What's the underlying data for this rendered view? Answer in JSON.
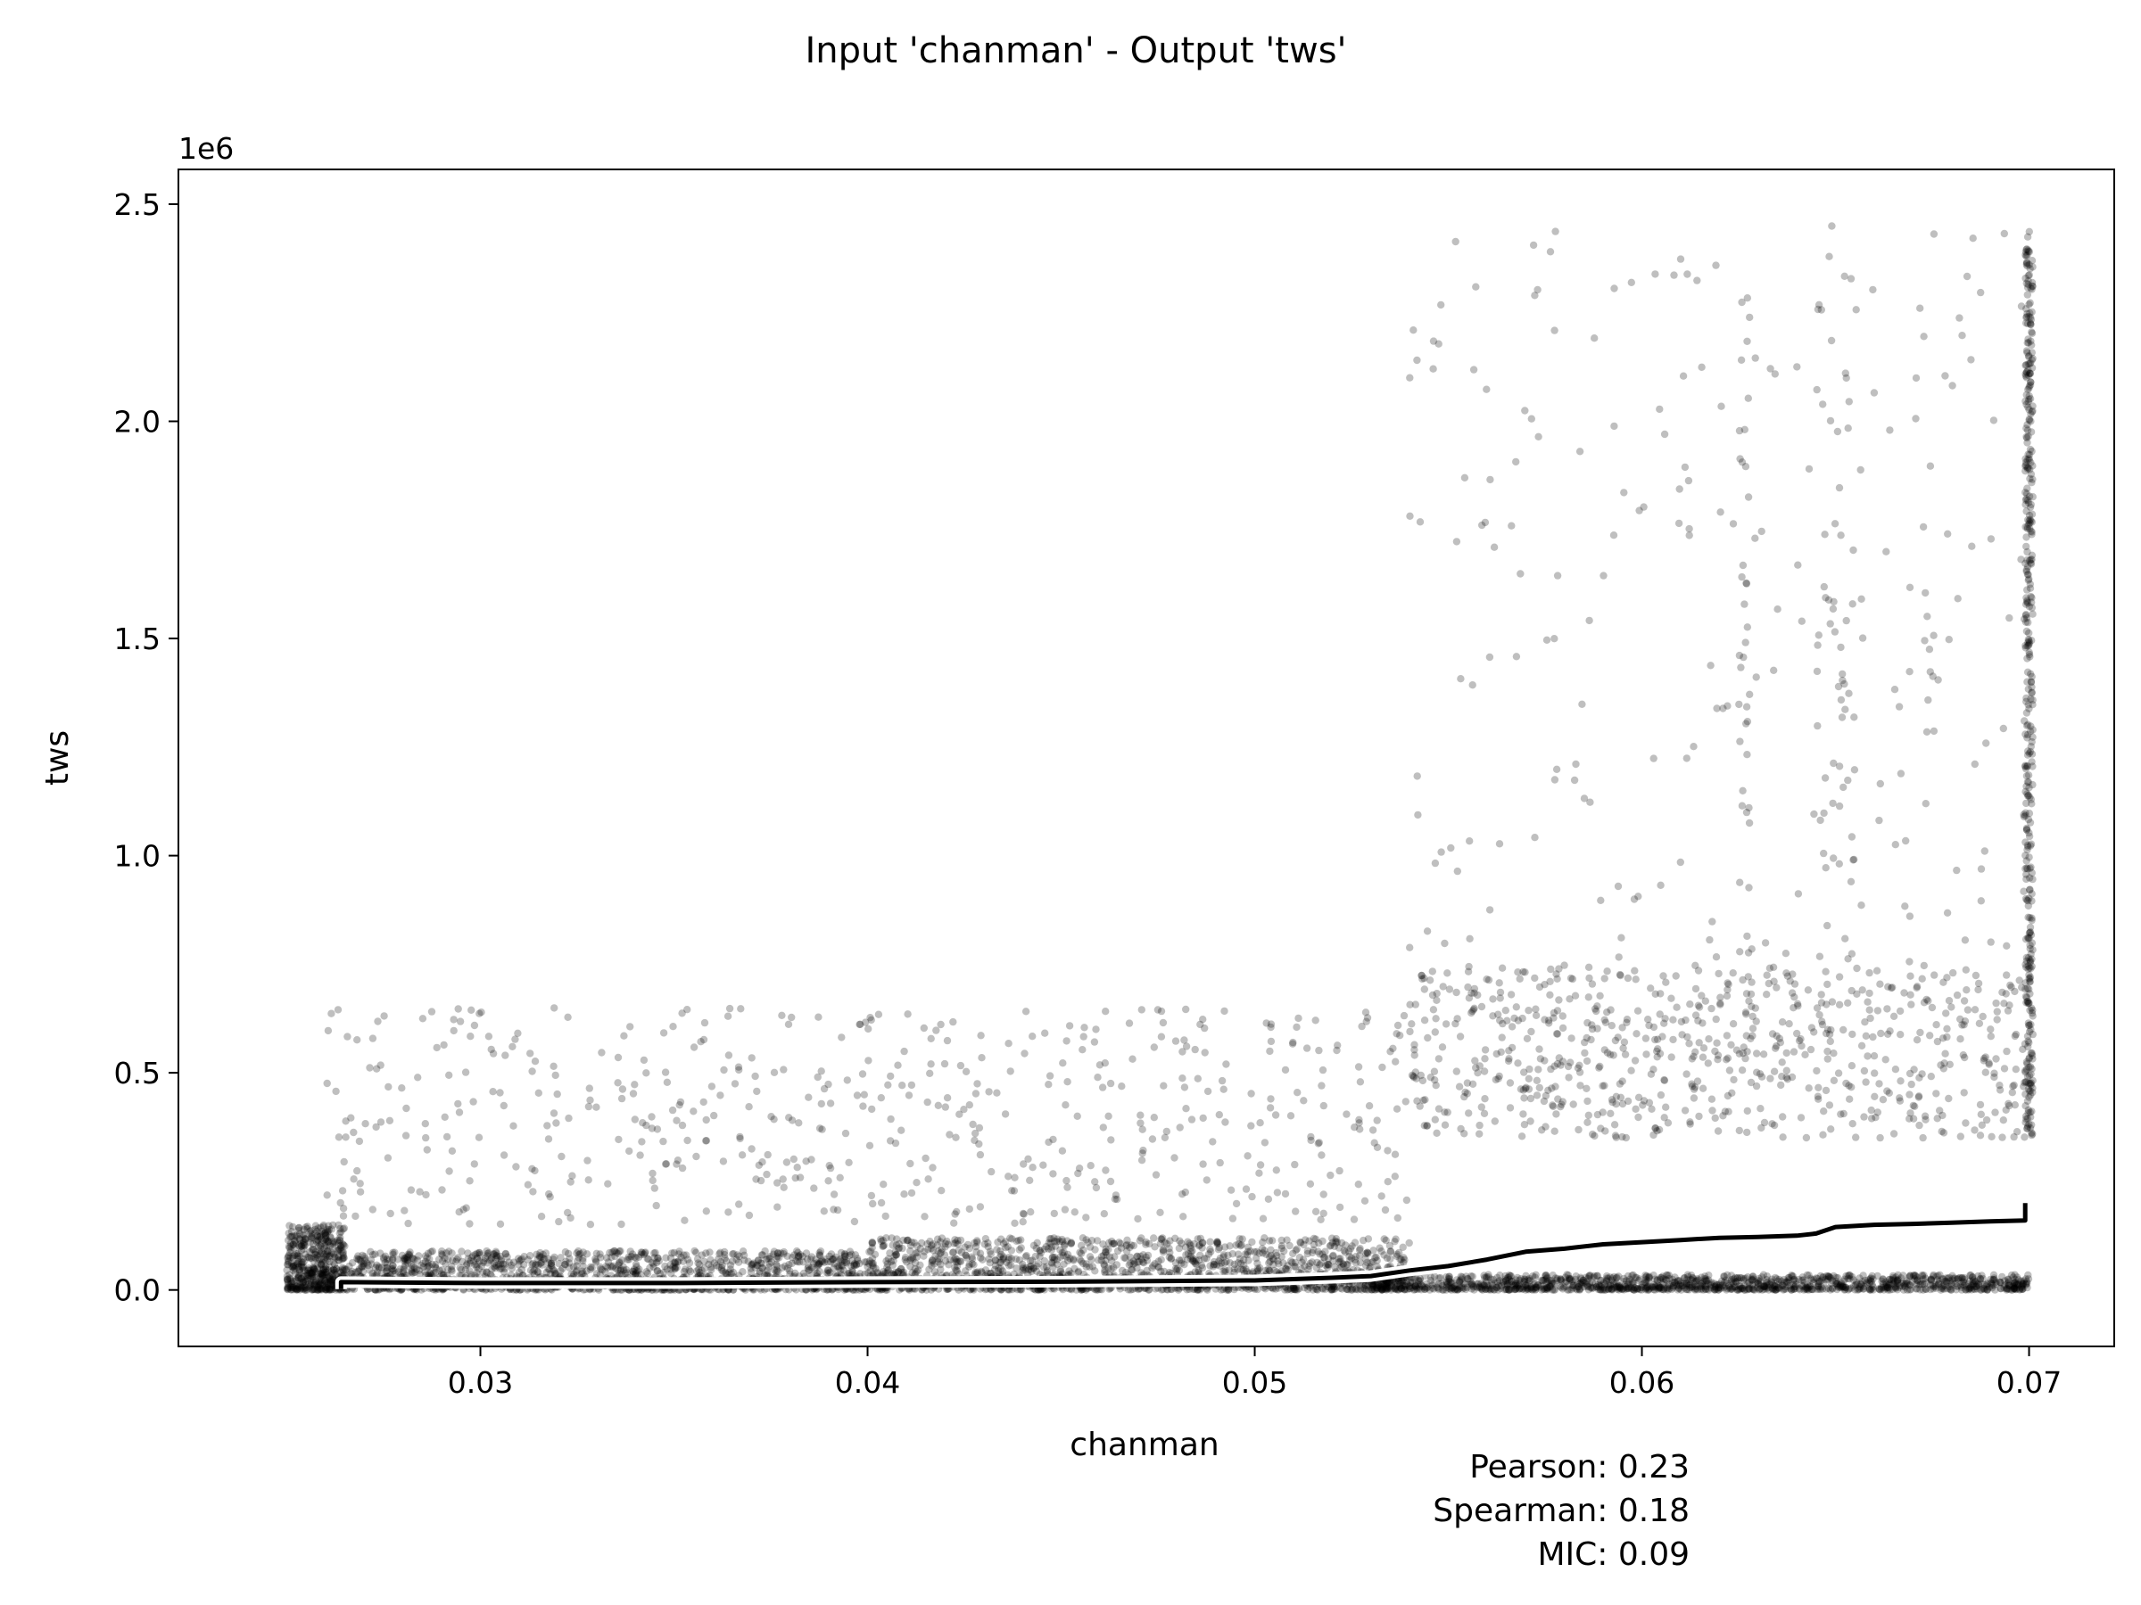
{
  "chart_data": {
    "type": "scatter",
    "title": "Input 'chanman' - Output 'tws'",
    "xlabel": "chanman",
    "ylabel": "tws",
    "y_offset_label": "1e6",
    "xlim": [
      0.0222,
      0.0722
    ],
    "ylim": [
      -0.13,
      2.58
    ],
    "y_scale_factor": 1000000,
    "x_ticks": [
      {
        "value": 0.03,
        "label": "0.03"
      },
      {
        "value": 0.04,
        "label": "0.04"
      },
      {
        "value": 0.05,
        "label": "0.05"
      },
      {
        "value": 0.06,
        "label": "0.06"
      },
      {
        "value": 0.07,
        "label": "0.07"
      }
    ],
    "y_ticks": [
      {
        "value": 0.0,
        "label": "0.0"
      },
      {
        "value": 0.5,
        "label": "0.5"
      },
      {
        "value": 1.0,
        "label": "1.0"
      },
      {
        "value": 1.5,
        "label": "1.5"
      },
      {
        "value": 2.0,
        "label": "2.0"
      },
      {
        "value": 2.5,
        "label": "2.5"
      }
    ],
    "grid": false,
    "point_color": "#000000",
    "point_opacity": 0.25,
    "line_color": "#000000",
    "halo_color": "#ffffff",
    "trend_line": {
      "x": [
        0.0264,
        0.0264,
        0.028,
        0.03,
        0.035,
        0.04,
        0.045,
        0.05,
        0.052,
        0.053,
        0.054,
        0.055,
        0.056,
        0.057,
        0.058,
        0.059,
        0.06,
        0.061,
        0.062,
        0.063,
        0.064,
        0.0645,
        0.065,
        0.066,
        0.067,
        0.068,
        0.069,
        0.0699,
        0.0699,
        0.0699
      ],
      "y": [
        0.002,
        0.018,
        0.017,
        0.016,
        0.016,
        0.018,
        0.019,
        0.022,
        0.028,
        0.032,
        0.045,
        0.055,
        0.07,
        0.088,
        0.095,
        0.105,
        0.11,
        0.115,
        0.12,
        0.122,
        0.125,
        0.13,
        0.145,
        0.15,
        0.152,
        0.155,
        0.158,
        0.16,
        0.16,
        0.2
      ]
    },
    "scatter_clusters": [
      {
        "x": [
          0.025,
          0.0265
        ],
        "y": [
          0.0,
          0.15
        ],
        "count": 500
      },
      {
        "x": [
          0.0265,
          0.04
        ],
        "y": [
          0.0,
          0.09
        ],
        "count": 1400
      },
      {
        "x": [
          0.04,
          0.054
        ],
        "y": [
          0.0,
          0.12
        ],
        "count": 1500
      },
      {
        "x": [
          0.053,
          0.07
        ],
        "y": [
          0.0,
          0.035
        ],
        "count": 1300
      },
      {
        "x": [
          0.054,
          0.07
        ],
        "y": [
          0.35,
          0.75
        ],
        "count": 700
      },
      {
        "x": [
          0.0699,
          0.0701
        ],
        "y": [
          0.35,
          2.45
        ],
        "count": 420
      },
      {
        "x": [
          0.026,
          0.054
        ],
        "y": [
          0.15,
          0.65
        ],
        "count": 550
      },
      {
        "x": [
          0.054,
          0.07
        ],
        "y": [
          0.75,
          2.45
        ],
        "count": 220
      },
      {
        "x": [
          0.0645,
          0.0655
        ],
        "y": [
          0.45,
          2.4
        ],
        "count": 60
      },
      {
        "x": [
          0.0625,
          0.0628
        ],
        "y": [
          0.5,
          2.3
        ],
        "count": 40
      }
    ]
  },
  "stats": {
    "pearson": "Pearson: 0.23",
    "spearman": "Spearman: 0.18",
    "mic": "MIC: 0.09"
  }
}
